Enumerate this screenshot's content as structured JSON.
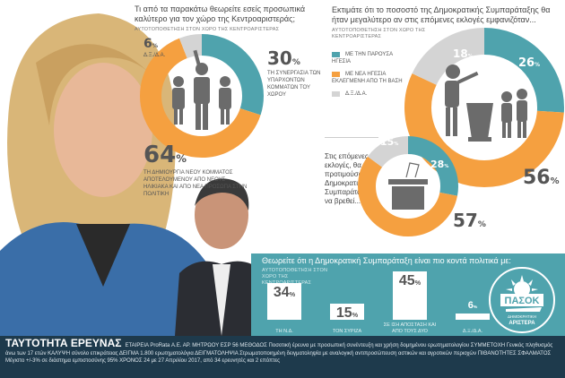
{
  "colors": {
    "teal": "#4fa3ad",
    "orange": "#f5a040",
    "gray": "#d4d4d4",
    "icon": "#6b6b6b",
    "footer": "#1e3a4c"
  },
  "q1": {
    "question": "Τι από τα παρακάτω θεωρείτε εσείς προσωπικά καλύτερο για τον χώρο της Κεντροαριστεράς;",
    "subtitle": "ΑΥΤΟΤΟΠΟΘΕΤΗΣΗ ΣΤΟΝ ΧΩΡΟ ΤΗΣ ΚΕΝΤΡΟΑΡΙΣΤΕΡΑΣ",
    "items": [
      {
        "value": 30,
        "label": "ΤΗ ΣΥΝΕΡΓΑΣΙΑ ΤΩΝ ΥΠΑΡΧΟΝΤΩΝ ΚΟΜΜΑΤΩΝ ΤΟΥ ΧΩΡΟΥ",
        "color": "teal"
      },
      {
        "value": 64,
        "label": "ΤΗ ΔΗΜΙΟΥΡΓΙΑ ΝΕΟΥ ΚΟΜΜΑΤΟΣ ΑΠΟΤΕΛΟΥΜΕΝΟΥ ΑΠΟ ΝΕΟΥΣ ΗΛΙΚΙΑΚΑ ΚΑΙ ΑΠΟ ΝΕΑ ΠΡΟΣΩΠΑ ΣΤΗΝ ΠΟΛΙΤΙΚΗ",
        "color": "orange"
      },
      {
        "value": 6,
        "label": "Δ.Ξ./Δ.Α.",
        "color": "gray"
      }
    ],
    "icon": "people-group-icon"
  },
  "q2": {
    "question": "Εκτιμάτε ότι το ποσοστό της Δημοκρατικής Συμπαράταξης θα ήταν μεγαλύτερο αν στις επόμενες εκλογές εμφανιζόταν...",
    "subtitle": "ΑΥΤΟΤΟΠΟΘΕΤΗΣΗ ΣΤΟΝ ΧΩΡΟ ΤΗΣ ΚΕΝΤΡΟΑΡΙΣΤΕΡΑΣ",
    "items": [
      {
        "value": 26,
        "label": "ΜΕ ΤΗΝ ΠΑΡΟΥΣΑ ΗΓΕΣΙΑ",
        "color": "teal"
      },
      {
        "value": 56,
        "label": "ΜΕ ΝΕΑ ΗΓΕΣΙΑ ΕΚΛΕΓΜΕΝΗ ΑΠΟ ΤΗ ΒΑΣΗ",
        "color": "orange"
      },
      {
        "value": 18,
        "label": "Δ.Ξ./Δ.Α.",
        "color": "gray"
      }
    ],
    "icon": "speaker-podium-icon"
  },
  "q3": {
    "question": "Στις επόμενες εκλογές, θα προτιμούσατε η Δημοκρατική Συμπαράταξη να βρεθεί...",
    "items": [
      {
        "value": 28,
        "color": "teal"
      },
      {
        "value": 57,
        "color": "orange"
      },
      {
        "value": 15,
        "color": "gray"
      }
    ],
    "icon": "ballot-box-icon"
  },
  "q4": {
    "question": "Θεωρείτε ότι η Δημοκρατική Συμπαράταξη είναι πιο κοντά πολιτικά με:",
    "subtitle": "ΑΥΤΟΤΟΠΟΘΕΤΗΣΗ ΣΤΟΝ ΧΩΡΟ ΤΗΣ ΚΕΝΤΡΟΑΡΙΣΤΕΡΑΣ",
    "bars": [
      {
        "value": 34,
        "label": "ΤΗ Ν.Δ."
      },
      {
        "value": 15,
        "label": "ΤΟΝ ΣΥΡΙΖΑ"
      },
      {
        "value": 45,
        "label": "ΣΕ ΙΣΗ ΑΠΟΣΤΑΣΗ ΚΑΙ ΑΠΟ ΤΟΥΣ ΔΥΟ"
      },
      {
        "value": 6,
        "label": "Δ.Ξ./Δ.Α."
      }
    ]
  },
  "logo": {
    "name": "ΠΑΣΟΚ",
    "sub1": "ΔΗΜΟΚΡΑΤΙΚΗ",
    "sub2": "ΑΡΙΣΤΕΡΑ"
  },
  "footer": {
    "title": "ΤΑΥΤΟΤΗΤΑ ΕΡΕΥΝΑΣ",
    "text": "ΕΤΑΙΡΕΙΑ ProRata Α.Ε. ΑΡ. ΜΗΤΡΩΟΥ ΕΣΡ 56 ΜΕΘΟΔΟΣ Ποσοτική έρευνα με προσωπική συνέντευξη και χρήση δομημένου ερωτηματολογίου ΣΥΜΜΕΤΟΧΗ Γενικός πληθυσμός άνω των 17 ετών ΚΑΛΥΨΗ σύνολο επικράτειας ΔΕΙΓΜΑ 1.800 ερωτηματολόγια ΔΕΙΓΜΑΤΟΛΗΨΙΑ Στρωματοποιημένη δειγματοληψία με αναλογική αντιπροσώπευση αστικών και αγροτικών περιοχών ΠΙΘΑΝΟΤΗΤΕΣ ΣΦΑΛΜΑΤΟΣ Μέγιστο +/-3% σε διάστημα εμπιστοσύνης 95% ΧΡΟΝΟΣ 24 με 27 Απριλίου 2017, από 34 ερευνητές και 2 επόπτες"
  }
}
